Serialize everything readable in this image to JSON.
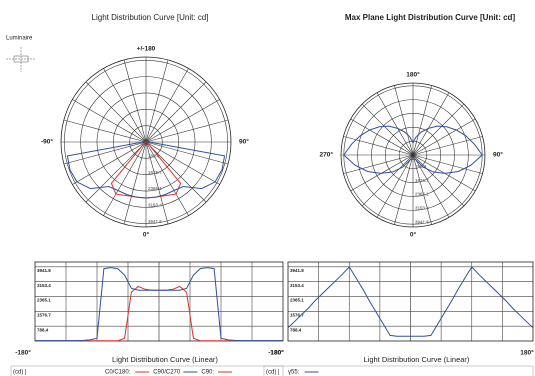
{
  "luminaire_label": "Luminaire",
  "chart_data": [
    {
      "type": "polar",
      "title": "Light Distribution Curve [Unit: cd]",
      "angles": [
        -180,
        -170,
        -160,
        -150,
        -140,
        -130,
        -120,
        -110,
        -100,
        -90,
        -80,
        -70,
        -60,
        -50,
        -40,
        -30,
        -20,
        -10,
        0,
        10,
        20,
        30,
        40,
        50,
        60,
        70,
        80,
        90,
        100,
        110,
        120,
        130,
        140,
        150,
        160,
        170,
        180
      ],
      "series": [
        {
          "color": "#e0302a",
          "values": [
            10,
            10,
            10,
            10,
            10,
            10,
            10,
            10,
            10,
            10,
            10,
            10,
            10,
            150,
            2600,
            2900,
            2750,
            2700,
            2700,
            2700,
            2750,
            2900,
            2600,
            150,
            10,
            10,
            10,
            10,
            10,
            10,
            10,
            10,
            10,
            10,
            10,
            10,
            10
          ]
        },
        {
          "color": "#3050a0",
          "values": [
            20,
            20,
            20,
            20,
            20,
            20,
            20,
            30,
            60,
            150,
            3850,
            3900,
            3850,
            3500,
            2800,
            2700,
            2700,
            2700,
            2700,
            2700,
            2700,
            2700,
            2800,
            3500,
            3850,
            3900,
            3850,
            150,
            60,
            30,
            20,
            20,
            20,
            20,
            20,
            20,
            20
          ]
        }
      ],
      "theta_labels": [
        {
          "value": 180,
          "label": "+/-180"
        },
        {
          "value": -90,
          "label": "-90°"
        },
        {
          "value": 90,
          "label": "90°"
        },
        {
          "value": 0,
          "label": "0°"
        }
      ],
      "rlim": [
        0,
        4100
      ],
      "rticks": [
        788.4,
        1576.7,
        2365.1,
        3153.4,
        3941.8
      ]
    },
    {
      "type": "polar",
      "title": "Max Plane Light Distribution Curve [Unit: cd]",
      "angles": [
        -180,
        -170,
        -160,
        -150,
        -140,
        -130,
        -120,
        -110,
        -100,
        -90,
        -80,
        -70,
        -60,
        -50,
        -40,
        -30,
        -20,
        -10,
        0,
        10,
        20,
        30,
        40,
        50,
        60,
        70,
        80,
        90,
        100,
        110,
        120,
        130,
        140,
        150,
        160,
        170,
        180
      ],
      "series": [
        {
          "color": "#3050a0",
          "values": [
            700,
            1050,
            1400,
            1750,
            2150,
            2500,
            2850,
            3200,
            3550,
            3940,
            3350,
            2750,
            2100,
            1500,
            900,
            300,
            250,
            250,
            250,
            250,
            250,
            300,
            900,
            1500,
            2100,
            2750,
            3350,
            3940,
            3550,
            3200,
            2850,
            2500,
            2150,
            1750,
            1400,
            1050,
            700
          ]
        }
      ],
      "theta_labels": [
        {
          "value": 180,
          "label": "180°"
        },
        {
          "value": 270,
          "label": "270°"
        },
        {
          "value": 90,
          "label": "90°"
        },
        {
          "value": 0,
          "label": "0°"
        }
      ],
      "rlim": [
        0,
        4100
      ],
      "rticks": [
        788.4,
        1576.7,
        2365.1,
        3153.4,
        3941.8
      ]
    },
    {
      "type": "line",
      "title": "Light Distribution Curve (Linear)",
      "unit_label": "(cd) |",
      "x": [
        -180,
        -170,
        -160,
        -150,
        -140,
        -130,
        -120,
        -110,
        -100,
        -90,
        -80,
        -70,
        -60,
        -50,
        -40,
        -30,
        -20,
        -10,
        0,
        10,
        20,
        30,
        40,
        50,
        60,
        70,
        80,
        90,
        100,
        110,
        120,
        130,
        140,
        150,
        160,
        170,
        180
      ],
      "series": [
        {
          "name": "C0/C180:",
          "color": "#e0302a",
          "values": [
            10,
            10,
            10,
            10,
            10,
            10,
            10,
            10,
            10,
            10,
            10,
            10,
            10,
            150,
            2600,
            2900,
            2750,
            2700,
            2700,
            2700,
            2750,
            2900,
            2600,
            150,
            10,
            10,
            10,
            10,
            10,
            10,
            10,
            10,
            10,
            10,
            10,
            10,
            10
          ]
        },
        {
          "name": "C90/C270",
          "color": "#3050a0",
          "values": [
            20,
            20,
            20,
            20,
            20,
            20,
            20,
            30,
            60,
            150,
            3850,
            3900,
            3850,
            3500,
            2800,
            2700,
            2700,
            2700,
            2700,
            2700,
            2700,
            2700,
            2800,
            3500,
            3850,
            3900,
            3850,
            150,
            60,
            30,
            20,
            20,
            20,
            20,
            20,
            20,
            20
          ]
        },
        {
          "name": "C90:",
          "color": "#e0302a",
          "values": [
            null,
            null,
            null,
            null,
            null,
            null,
            null,
            null,
            null,
            null,
            null,
            null,
            null,
            null,
            null,
            null,
            null,
            null,
            null,
            null,
            null,
            null,
            null,
            null,
            null,
            null,
            null,
            null,
            null,
            null,
            null,
            null,
            null,
            null,
            null,
            null,
            null
          ]
        }
      ],
      "xlim": [
        -180,
        180
      ],
      "xticks": [
        {
          "value": -180,
          "label": "-180°"
        },
        {
          "value": 180,
          "label": "180°"
        }
      ],
      "ylim": [
        0,
        4200
      ],
      "yticks": [
        788.4,
        1576.7,
        2365.1,
        3153.4,
        3941.8
      ]
    },
    {
      "type": "line",
      "title": "Light Distribution Curve (Linear)",
      "unit_label": "(cd) |",
      "x": [
        -180,
        -170,
        -160,
        -150,
        -140,
        -130,
        -120,
        -110,
        -100,
        -90,
        -80,
        -70,
        -60,
        -50,
        -40,
        -30,
        -20,
        -10,
        0,
        10,
        20,
        30,
        40,
        50,
        60,
        70,
        80,
        90,
        100,
        110,
        120,
        130,
        140,
        150,
        160,
        170,
        180
      ],
      "series": [
        {
          "name": "γ55:",
          "color": "#3050a0",
          "values": [
            700,
            1050,
            1400,
            1750,
            2150,
            2500,
            2850,
            3200,
            3550,
            3940,
            3350,
            2750,
            2100,
            1500,
            900,
            300,
            250,
            250,
            250,
            250,
            250,
            300,
            900,
            1500,
            2100,
            2750,
            3350,
            3940,
            3550,
            3200,
            2850,
            2500,
            2150,
            1750,
            1400,
            1050,
            700
          ]
        }
      ],
      "xlim": [
        -180,
        180
      ],
      "xticks": [
        {
          "value": -180,
          "label": "-180°"
        },
        {
          "value": 180,
          "label": "180°"
        }
      ],
      "ylim": [
        0,
        4200
      ],
      "yticks": [
        788.4,
        1576.7,
        2365.1,
        3153.4,
        3941.8
      ]
    }
  ]
}
